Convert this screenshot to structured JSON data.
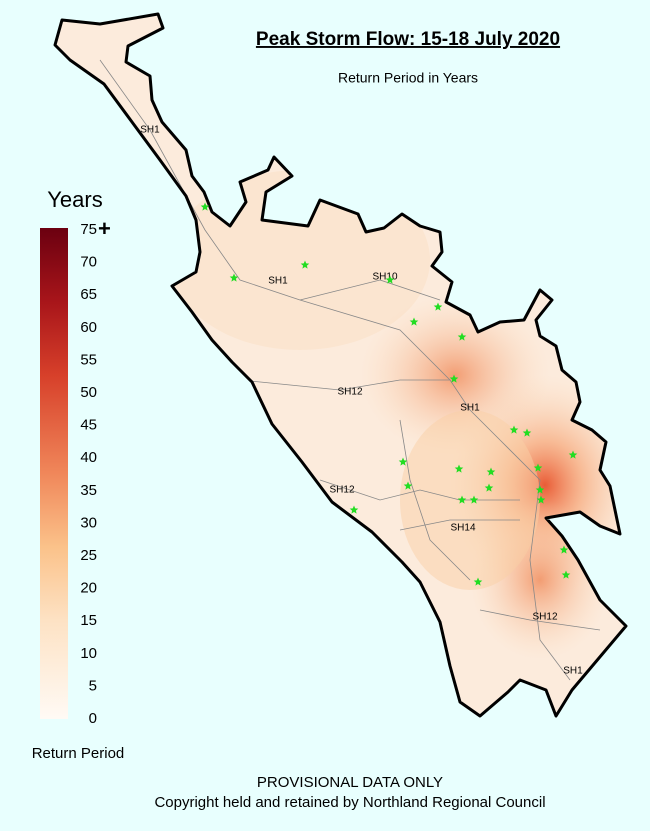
{
  "header": {
    "title": "Peak Storm Flow: 15-18 July 2020",
    "subtitle": "Return Period in Years"
  },
  "legend": {
    "title": "Years",
    "ticks": [
      0,
      5,
      10,
      15,
      20,
      25,
      30,
      35,
      40,
      45,
      50,
      55,
      60,
      65,
      70,
      75
    ],
    "overflow_mark": "+",
    "caption": "Return Period"
  },
  "roads": [
    "SH1",
    "SH10",
    "SH1",
    "SH12",
    "SH1",
    "SH12",
    "SH14",
    "SH12",
    "SH1"
  ],
  "footer": {
    "notice": "PROVISIONAL DATA ONLY",
    "copyright": "Copyright held and retained by Northland Regional Council"
  }
}
